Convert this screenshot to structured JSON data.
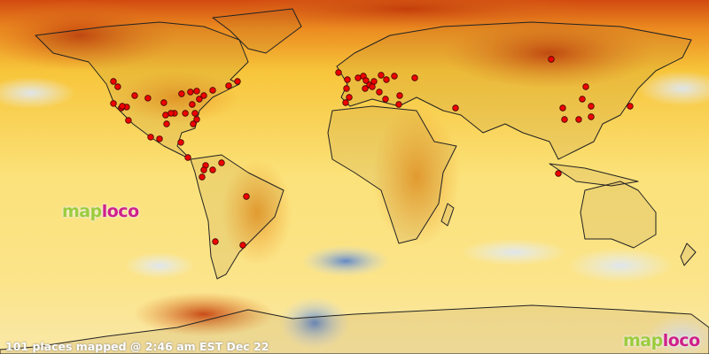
{
  "status_text": "101 places mapped @ 2:46 am EST Dec 22",
  "logo": {
    "part1": "map",
    "part2": "loco",
    "color1": "#9ccc3c",
    "color2": "#d0208a"
  },
  "marker_color": "#ee0000",
  "projection": "equirectangular",
  "markers": [
    [
      -122.4,
      48.6
    ],
    [
      -120.2,
      45.9
    ],
    [
      -122.4,
      37.4
    ],
    [
      -118.4,
      35.1
    ],
    [
      -115.7,
      35.6
    ],
    [
      -111.6,
      41.4
    ],
    [
      -104.9,
      40.1
    ],
    [
      -96.8,
      37.8
    ],
    [
      -87.8,
      42.3
    ],
    [
      -83.3,
      43.2
    ],
    [
      -80.1,
      43.7
    ],
    [
      -76.5,
      41.4
    ],
    [
      -72,
      44.1
    ],
    [
      -63.9,
      46.4
    ],
    [
      -59.4,
      48.6
    ],
    [
      -78.8,
      39.6
    ],
    [
      -82.4,
      36.9
    ],
    [
      -85.9,
      32.4
    ],
    [
      -91.4,
      32.4
    ],
    [
      -95.9,
      31.5
    ],
    [
      -81,
      32.4
    ],
    [
      -80.1,
      29.3
    ],
    [
      -81.9,
      27
    ],
    [
      -95.4,
      27
    ],
    [
      -103.5,
      20.3
    ],
    [
      -99,
      19.4
    ],
    [
      -88.2,
      17.6
    ],
    [
      -93.2,
      32.4
    ],
    [
      -114.8,
      28.8
    ],
    [
      -117.9,
      36
    ],
    [
      -84.6,
      9.9
    ],
    [
      -75.6,
      5.9
    ],
    [
      -72,
      3.6
    ],
    [
      -76.5,
      3.6
    ],
    [
      -67.5,
      7.2
    ],
    [
      -77.4,
      0
    ],
    [
      -54.9,
      -9.9
    ],
    [
      -70.65,
      -32.85
    ],
    [
      -56.7,
      -34.65
    ],
    [
      -8.1,
      53.1
    ],
    [
      -3.6,
      49.5
    ],
    [
      -4.05,
      45
    ],
    [
      -4.5,
      37.8
    ],
    [
      1.8,
      50.4
    ],
    [
      4.5,
      51.3
    ],
    [
      5.85,
      49.05
    ],
    [
      5.4,
      45
    ],
    [
      7.65,
      46.8
    ],
    [
      9.9,
      48.6
    ],
    [
      13.5,
      51.75
    ],
    [
      16.2,
      49.5
    ],
    [
      20.25,
      51.3
    ],
    [
      30.6,
      50.4
    ],
    [
      9,
      45.9
    ],
    [
      12.6,
      43.2
    ],
    [
      15.75,
      39.6
    ],
    [
      22.95,
      41.4
    ],
    [
      22.5,
      36.9
    ],
    [
      -2.7,
      40.5
    ],
    [
      51.3,
      35.1
    ],
    [
      99.9,
      59.85
    ],
    [
      117.45,
      45.9
    ],
    [
      105.75,
      35.1
    ],
    [
      115.65,
      39.6
    ],
    [
      120.15,
      36
    ],
    [
      113.85,
      29.25
    ],
    [
      120.15,
      30.6
    ],
    [
      106.65,
      29.25
    ],
    [
      139.95,
      36
    ],
    [
      103.5,
      1.8
    ]
  ]
}
